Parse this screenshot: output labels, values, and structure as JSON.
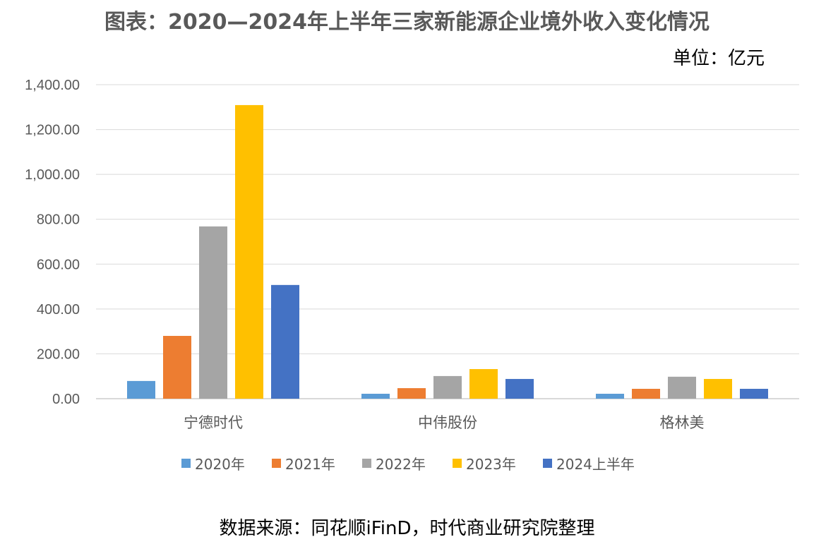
{
  "title": "图表：2020—2024年上半年三家新能源企业境外收入变化情况",
  "unit": "单位：亿元",
  "source": "数据来源：同花顺iFinD，时代商业研究院整理",
  "chart_data": {
    "type": "bar",
    "title": "图表：2020—2024年上半年三家新能源企业境外收入变化情况",
    "ylabel": "单位：亿元",
    "categories": [
      "宁德时代",
      "中伟股份",
      "格林美"
    ],
    "series": [
      {
        "name": "2020年",
        "color": "#5B9BD5",
        "values": [
          79,
          22,
          22
        ]
      },
      {
        "name": "2021年",
        "color": "#ED7D31",
        "values": [
          280,
          47,
          44
        ]
      },
      {
        "name": "2022年",
        "color": "#A5A5A5",
        "values": [
          768,
          101,
          98
        ]
      },
      {
        "name": "2023年",
        "color": "#FFC000",
        "values": [
          1309,
          132,
          88
        ]
      },
      {
        "name": "2024上半年",
        "color": "#4472C4",
        "values": [
          507,
          88,
          44
        ]
      }
    ],
    "ylim": [
      0,
      1400
    ],
    "yticks": [
      "0.00",
      "200.00",
      "400.00",
      "600.00",
      "800.00",
      "1,000.00",
      "1,200.00",
      "1,400.00"
    ],
    "grid": true,
    "legend": "bottom"
  }
}
